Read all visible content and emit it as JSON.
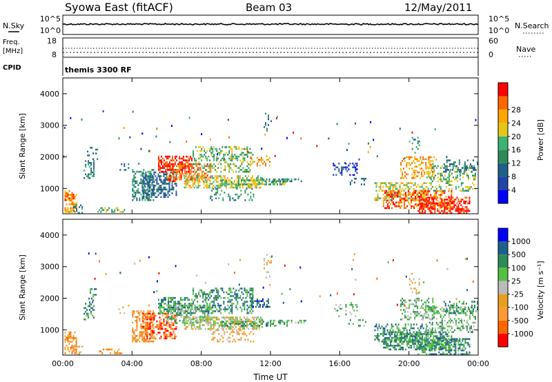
{
  "header": {
    "station": "Syowa East (fitACF)",
    "beam": "Beam 03",
    "date": "12/May/2011"
  },
  "panel_noise": {
    "left_label": "N.Sky",
    "right_label": "N.Search",
    "ticks_left": [
      "10^5",
      "10^0"
    ],
    "ticks_right": [
      "10^5",
      "10^0"
    ]
  },
  "panel_freq": {
    "left_label_1": "Freq.",
    "left_label_2": "[MHz]",
    "right_label": "Nave",
    "ticks_left": [
      "18",
      "8"
    ],
    "ticks_right": [
      "60",
      "0"
    ]
  },
  "panel_cpid": {
    "label": "CPID",
    "program": "themis 3300 RF"
  },
  "colors": {
    "power_scale": [
      "#0000ff",
      "#2244a8",
      "#1f5f8b",
      "#2e8b57",
      "#3cb371",
      "#e6c619",
      "#ffa500",
      "#ff6600",
      "#ff0000"
    ],
    "velocity_scale": [
      "#ff0000",
      "#ff6600",
      "#ff9933",
      "#e8a020",
      "#bbbbbb",
      "#55c040",
      "#2e8b57",
      "#1f5f8b",
      "#0000ff"
    ]
  },
  "chart_data": [
    {
      "type": "heatmap",
      "name": "power",
      "ylabel": "Slant Range [km]",
      "colorbar_label": "Power [dB]",
      "colorbar_ticks": [
        "4",
        "8",
        "12",
        "16",
        "20",
        "24",
        "28"
      ],
      "yticks": [
        "1000",
        "2000",
        "3000",
        "4000"
      ],
      "ylim": [
        200,
        4500
      ],
      "xlim": [
        0,
        24
      ],
      "xticks": [
        "00:00",
        "04:00",
        "08:00",
        "12:00",
        "16:00",
        "20:00",
        "00:00"
      ],
      "grid": false
    },
    {
      "type": "heatmap",
      "name": "velocity",
      "ylabel": "Slant Range [km]",
      "colorbar_label": "Velocity [m s⁻¹]",
      "colorbar_ticks": [
        "1000",
        "500",
        "100",
        "25",
        "-25",
        "-100",
        "-500",
        "-1000"
      ],
      "yticks": [
        "1000",
        "2000",
        "3000",
        "4000"
      ],
      "ylim": [
        200,
        4500
      ],
      "xlim": [
        0,
        24
      ],
      "xticks": [
        "00:00",
        "04:00",
        "08:00",
        "12:00",
        "16:00",
        "20:00",
        "00:00"
      ],
      "xlabel": "Time UT",
      "grid": false
    }
  ]
}
